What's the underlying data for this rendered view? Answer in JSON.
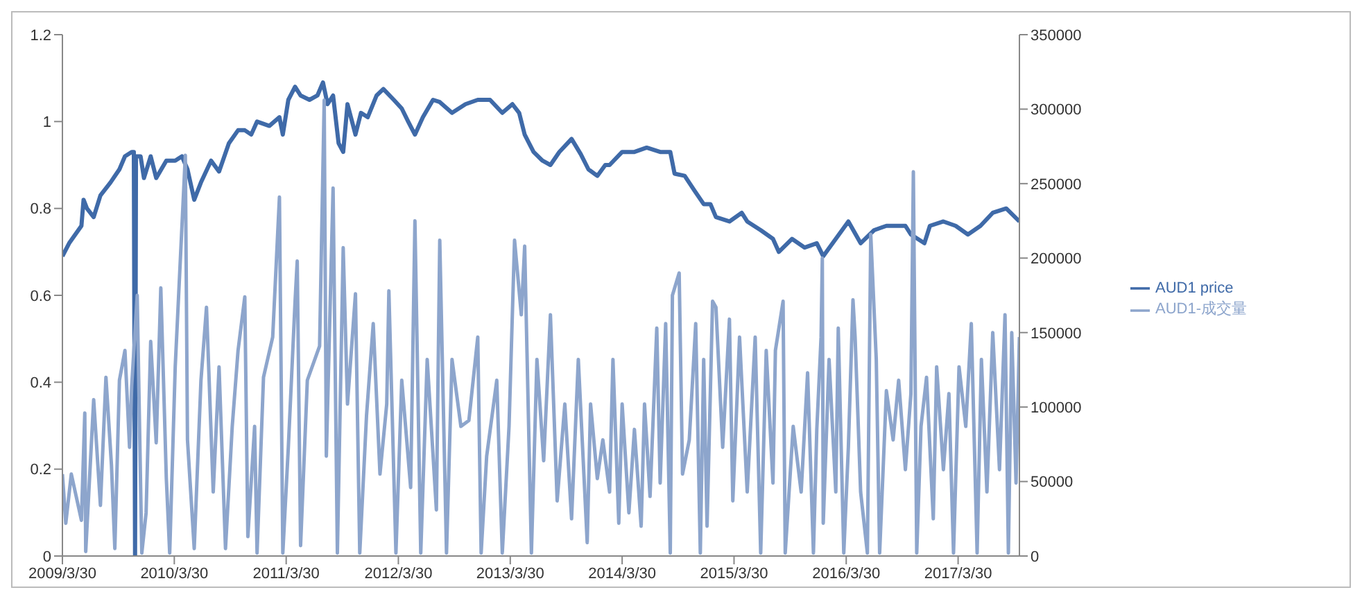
{
  "chart_data": {
    "type": "line",
    "legend": "right",
    "line_style": "solid",
    "xlim": [
      "2009-03-30",
      "2017-10-16"
    ],
    "xticks": [
      {
        "value": "2009-03-30",
        "label": "2009/3/30"
      },
      {
        "value": "2010-03-30",
        "label": "2010/3/30"
      },
      {
        "value": "2011-03-30",
        "label": "2011/3/30"
      },
      {
        "value": "2012-03-30",
        "label": "2012/3/30"
      },
      {
        "value": "2013-03-30",
        "label": "2013/3/30"
      },
      {
        "value": "2014-03-30",
        "label": "2014/3/30"
      },
      {
        "value": "2015-03-30",
        "label": "2015/3/30"
      },
      {
        "value": "2016-03-30",
        "label": "2016/3/30"
      },
      {
        "value": "2017-03-30",
        "label": "2017/3/30"
      }
    ],
    "ylim": [
      0,
      1.2
    ],
    "yticks": [
      0,
      0.2,
      0.4,
      0.6,
      0.8,
      1,
      1.2
    ],
    "y2lim": [
      0,
      350000
    ],
    "y2ticks": [
      0,
      50000,
      100000,
      150000,
      200000,
      250000,
      300000,
      350000
    ],
    "series": [
      {
        "name": "AUD1 price",
        "color": "#3f6aa8",
        "axis": "y",
        "x": [
          "2009-03-30",
          "2009-04-21",
          "2009-05-31",
          "2009-06-07",
          "2009-06-18",
          "2009-07-10",
          "2009-08-01",
          "2009-09-03",
          "2009-10-02",
          "2009-10-20",
          "2009-11-11",
          "2009-11-18",
          "2009-11-22",
          "2009-11-25",
          "2009-12-10",
          "2009-12-21",
          "2010-01-12",
          "2010-01-30",
          "2010-03-04",
          "2010-04-02",
          "2010-04-24",
          "2010-05-12",
          "2010-06-03",
          "2010-06-25",
          "2010-07-28",
          "2010-08-23",
          "2010-09-24",
          "2010-10-24",
          "2010-11-15",
          "2010-12-06",
          "2010-12-25",
          "2011-02-03",
          "2011-03-08",
          "2011-03-19",
          "2011-04-06",
          "2011-04-28",
          "2011-05-16",
          "2011-06-14",
          "2011-07-10",
          "2011-07-28",
          "2011-08-12",
          "2011-08-30",
          "2011-09-17",
          "2011-10-02",
          "2011-10-16",
          "2011-11-11",
          "2011-11-29",
          "2011-12-21",
          "2012-01-19",
          "2012-02-10",
          "2012-03-15",
          "2012-04-10",
          "2012-05-01",
          "2012-05-23",
          "2012-06-18",
          "2012-07-21",
          "2012-08-12",
          "2012-09-21",
          "2012-11-04",
          "2012-12-14",
          "2013-01-23",
          "2013-03-04",
          "2013-04-06",
          "2013-04-28",
          "2013-05-16",
          "2013-06-14",
          "2013-07-13",
          "2013-08-08",
          "2013-09-06",
          "2013-10-16",
          "2013-11-15",
          "2013-12-10",
          "2014-01-08",
          "2014-02-03",
          "2014-02-17",
          "2014-03-30",
          "2014-05-09",
          "2014-06-18",
          "2014-08-01",
          "2014-09-03",
          "2014-09-17",
          "2014-10-20",
          "2014-11-22",
          "2014-12-21",
          "2015-01-12",
          "2015-01-30",
          "2015-03-15",
          "2015-04-24",
          "2015-05-12",
          "2015-06-25",
          "2015-08-04",
          "2015-08-23",
          "2015-10-05",
          "2015-11-15",
          "2015-12-25",
          "2016-01-15",
          "2016-02-25",
          "2016-04-06",
          "2016-05-16",
          "2016-06-29",
          "2016-08-08",
          "2016-10-09",
          "2016-10-27",
          "2016-12-10",
          "2016-12-28",
          "2017-02-10",
          "2017-03-22",
          "2017-05-01",
          "2017-06-11",
          "2017-07-21",
          "2017-09-03",
          "2017-10-16"
        ],
        "values": [
          0.69,
          0.72,
          0.76,
          0.82,
          0.8,
          0.78,
          0.83,
          0.86,
          0.89,
          0.92,
          0.93,
          0.93,
          0,
          0.92,
          0.92,
          0.87,
          0.92,
          0.87,
          0.91,
          0.91,
          0.92,
          0.89,
          0.82,
          0.86,
          0.91,
          0.885,
          0.95,
          0.98,
          0.98,
          0.97,
          1.0,
          0.99,
          1.01,
          0.97,
          1.05,
          1.08,
          1.06,
          1.05,
          1.06,
          1.09,
          1.04,
          1.06,
          0.95,
          0.93,
          1.04,
          0.97,
          1.02,
          1.01,
          1.06,
          1.075,
          1.05,
          1.03,
          1.0,
          0.97,
          1.01,
          1.05,
          1.045,
          1.02,
          1.04,
          1.05,
          1.05,
          1.02,
          1.04,
          1.02,
          0.97,
          0.93,
          0.91,
          0.9,
          0.93,
          0.96,
          0.925,
          0.89,
          0.875,
          0.9,
          0.9,
          0.93,
          0.93,
          0.94,
          0.93,
          0.93,
          0.88,
          0.875,
          0.84,
          0.81,
          0.81,
          0.78,
          0.77,
          0.79,
          0.77,
          0.75,
          0.73,
          0.7,
          0.73,
          0.71,
          0.72,
          0.69,
          0.73,
          0.77,
          0.72,
          0.75,
          0.76,
          0.76,
          0.74,
          0.72,
          0.76,
          0.77,
          0.76,
          0.74,
          0.76,
          0.79,
          0.8,
          0.77
        ]
      },
      {
        "name": "AUD1-成交量",
        "color": "#8da5cc",
        "axis": "y2",
        "x": [
          "2009-03-30",
          "2009-04-10",
          "2009-04-28",
          "2009-05-31",
          "2009-06-11",
          "2009-06-14",
          "2009-07-10",
          "2009-08-01",
          "2009-08-19",
          "2009-09-06",
          "2009-09-17",
          "2009-10-02",
          "2009-10-20",
          "2009-11-04",
          "2009-11-11",
          "2009-11-29",
          "2009-12-14",
          "2009-12-28",
          "2010-01-12",
          "2010-01-30",
          "2010-02-14",
          "2010-03-04",
          "2010-03-15",
          "2010-04-02",
          "2010-05-05",
          "2010-05-12",
          "2010-06-03",
          "2010-06-25",
          "2010-07-13",
          "2010-08-04",
          "2010-08-23",
          "2010-09-13",
          "2010-10-05",
          "2010-10-24",
          "2010-11-15",
          "2010-11-25",
          "2010-12-17",
          "2010-12-25",
          "2011-01-15",
          "2011-02-14",
          "2011-03-08",
          "2011-03-19",
          "2011-04-06",
          "2011-04-28",
          "2011-05-05",
          "2011-05-16",
          "2011-06-07",
          "2011-07-17",
          "2011-08-01",
          "2011-08-08",
          "2011-08-30",
          "2011-09-13",
          "2011-10-02",
          "2011-10-16",
          "2011-11-11",
          "2011-11-25",
          "2011-12-17",
          "2012-01-08",
          "2012-01-30",
          "2012-02-21",
          "2012-02-28",
          "2012-03-22",
          "2012-04-10",
          "2012-05-09",
          "2012-05-23",
          "2012-06-11",
          "2012-07-02",
          "2012-08-01",
          "2012-08-12",
          "2012-09-03",
          "2012-09-21",
          "2012-10-20",
          "2012-11-15",
          "2012-12-14",
          "2012-12-25",
          "2013-01-12",
          "2013-02-14",
          "2013-03-04",
          "2013-03-26",
          "2013-04-13",
          "2013-05-05",
          "2013-05-16",
          "2013-06-07",
          "2013-06-25",
          "2013-07-17",
          "2013-08-08",
          "2013-08-30",
          "2013-09-24",
          "2013-10-16",
          "2013-11-07",
          "2013-12-06",
          "2013-12-17",
          "2014-01-08",
          "2014-01-26",
          "2014-02-17",
          "2014-02-28",
          "2014-03-19",
          "2014-03-30",
          "2014-04-21",
          "2014-05-09",
          "2014-05-31",
          "2014-06-11",
          "2014-06-29",
          "2014-07-21",
          "2014-08-01",
          "2014-08-19",
          "2014-09-03",
          "2014-09-10",
          "2014-10-02",
          "2014-10-13",
          "2014-11-04",
          "2014-11-25",
          "2014-12-10",
          "2014-12-21",
          "2015-01-01",
          "2015-01-19",
          "2015-01-30",
          "2015-02-21",
          "2015-03-15",
          "2015-03-26",
          "2015-04-17",
          "2015-05-12",
          "2015-06-07",
          "2015-06-25",
          "2015-07-13",
          "2015-08-04",
          "2015-08-12",
          "2015-09-06",
          "2015-09-13",
          "2015-10-09",
          "2015-11-04",
          "2015-11-25",
          "2015-12-14",
          "2015-12-25",
          "2016-01-08",
          "2016-01-12",
          "2016-01-15",
          "2016-02-03",
          "2016-02-25",
          "2016-03-04",
          "2016-03-22",
          "2016-04-06",
          "2016-04-21",
          "2016-04-28",
          "2016-05-16",
          "2016-06-07",
          "2016-06-18",
          "2016-07-06",
          "2016-07-17",
          "2016-08-08",
          "2016-08-30",
          "2016-09-17",
          "2016-10-09",
          "2016-10-27",
          "2016-11-04",
          "2016-11-15",
          "2016-11-29",
          "2016-12-17",
          "2017-01-08",
          "2017-01-19",
          "2017-02-10",
          "2017-02-28",
          "2017-03-15",
          "2017-04-02",
          "2017-04-24",
          "2017-05-12",
          "2017-05-31",
          "2017-06-14",
          "2017-07-02",
          "2017-07-21",
          "2017-08-12",
          "2017-08-30",
          "2017-09-10",
          "2017-09-21",
          "2017-10-05",
          "2017-10-16"
        ],
        "values": [
          55000,
          22000,
          55000,
          24000,
          96000,
          3000,
          105000,
          34000,
          120000,
          61000,
          5000,
          118000,
          138000,
          73000,
          114000,
          175000,
          2000,
          29000,
          144000,
          76000,
          180000,
          52000,
          2000,
          127000,
          269000,
          78000,
          5000,
          118000,
          167000,
          43000,
          127000,
          5000,
          87000,
          138000,
          174000,
          13000,
          87000,
          2000,
          120000,
          147000,
          241000,
          2000,
          73000,
          171000,
          198000,
          7000,
          118000,
          141000,
          306000,
          67000,
          247000,
          2000,
          207000,
          102000,
          176000,
          2000,
          94000,
          156000,
          55000,
          102000,
          178000,
          2000,
          118000,
          46000,
          225000,
          2000,
          132000,
          31000,
          212000,
          2000,
          132000,
          87000,
          91000,
          147000,
          2000,
          67000,
          118000,
          2000,
          87000,
          212000,
          162000,
          208000,
          2000,
          132000,
          64000,
          162000,
          37000,
          102000,
          25000,
          132000,
          9000,
          102000,
          52000,
          78000,
          43000,
          132000,
          22000,
          102000,
          29000,
          85000,
          20000,
          102000,
          40000,
          153000,
          49000,
          156000,
          2000,
          175000,
          190000,
          55000,
          78000,
          156000,
          2000,
          132000,
          20000,
          171000,
          167000,
          73000,
          159000,
          37000,
          147000,
          43000,
          147000,
          2000,
          138000,
          49000,
          138000,
          171000,
          2000,
          87000,
          43000,
          123000,
          2000,
          85000,
          147000,
          200000,
          22000,
          132000,
          43000,
          153000,
          2000,
          73000,
          172000,
          147000,
          43000,
          2000,
          216000,
          132000,
          2000,
          111000,
          78000,
          118000,
          58000,
          109000,
          258000,
          2000,
          87000,
          120000,
          25000,
          127000,
          58000,
          109000,
          2000,
          127000,
          87000,
          156000,
          2000,
          132000,
          43000,
          150000,
          58000,
          162000,
          2000,
          150000,
          49000,
          147000
        ]
      }
    ]
  }
}
